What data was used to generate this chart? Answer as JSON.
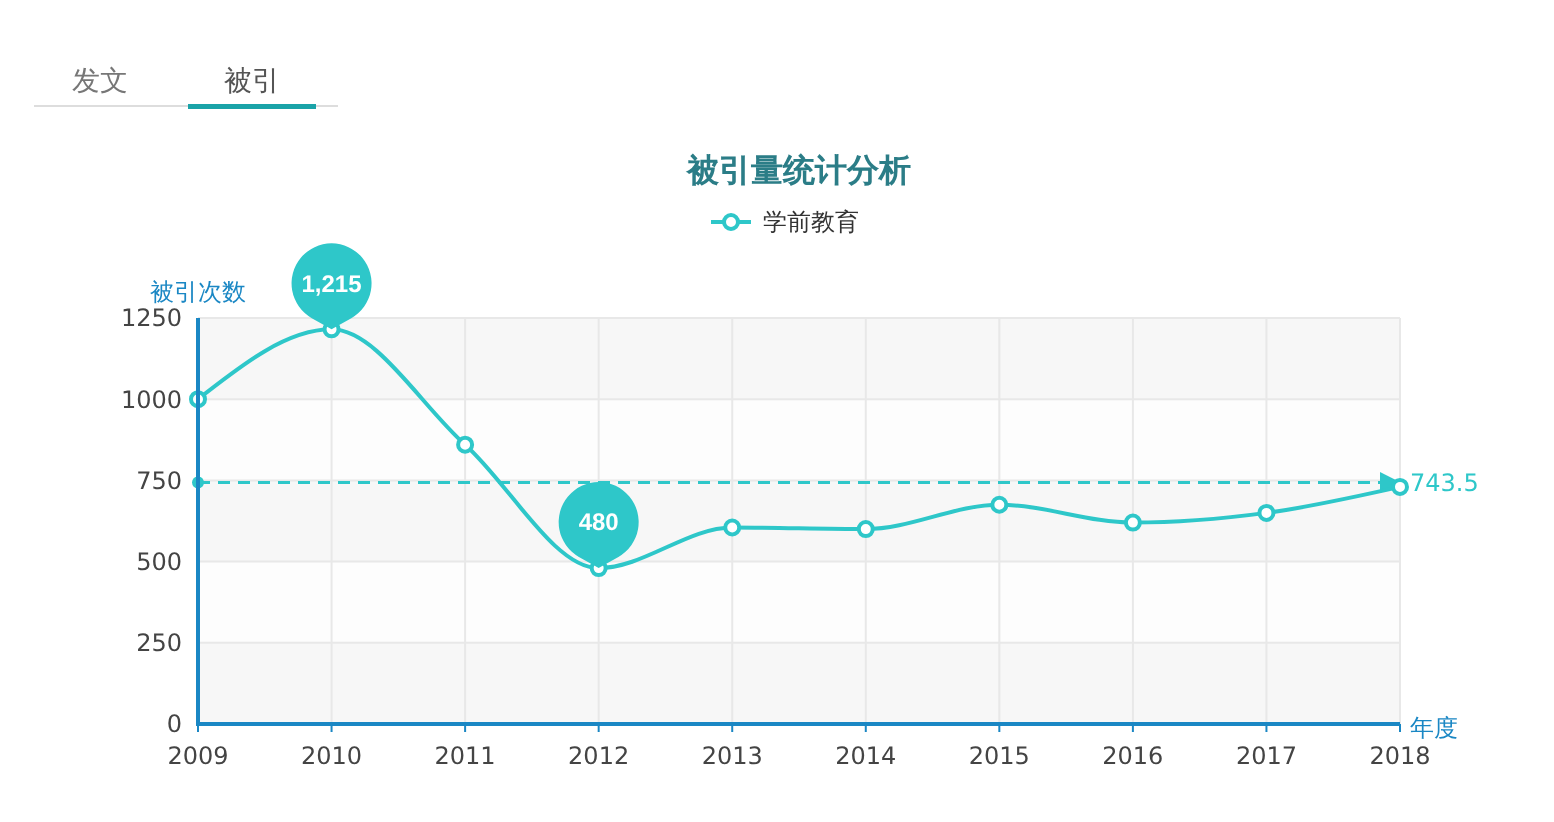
{
  "chart_data": {
    "type": "line",
    "title": "被引量统计分析",
    "xlabel": "年度",
    "ylabel": "被引次数",
    "categories": [
      "2009",
      "2010",
      "2011",
      "2012",
      "2013",
      "2014",
      "2015",
      "2016",
      "2017",
      "2018"
    ],
    "series": [
      {
        "name": "学前教育",
        "color": "#2ec7c9",
        "values": [
          1000,
          1215,
          860,
          480,
          605,
          600,
          675,
          620,
          650,
          730
        ]
      }
    ],
    "ylim": [
      0,
      1250
    ],
    "yticks": [
      0,
      250,
      500,
      750,
      1000,
      1250
    ],
    "grid": true,
    "legend": "top",
    "marker": "circle",
    "ref_lines": [
      {
        "axis": "y",
        "value": 743.5,
        "label": "743.5",
        "color": "#2ec7c9",
        "line_style": "dashed"
      }
    ],
    "annotations": [
      "发文",
      "被引",
      {
        "text": "1,215",
        "x": "2010",
        "y": 1215
      },
      {
        "text": "480",
        "x": "2012",
        "y": 480
      }
    ]
  }
}
